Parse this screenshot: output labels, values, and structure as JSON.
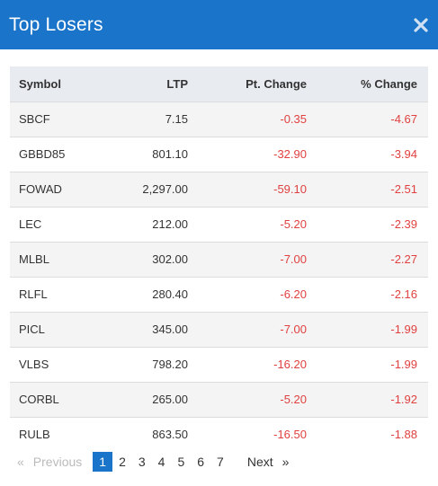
{
  "header": {
    "title": "Top Losers",
    "close_icon": "close-icon"
  },
  "table": {
    "columns": [
      "Symbol",
      "LTP",
      "Pt. Change",
      "% Change"
    ],
    "rows": [
      {
        "symbol": "SBCF",
        "ltp": "7.15",
        "pt_change": "-0.35",
        "pct_change": "-4.67"
      },
      {
        "symbol": "GBBD85",
        "ltp": "801.10",
        "pt_change": "-32.90",
        "pct_change": "-3.94"
      },
      {
        "symbol": "FOWAD",
        "ltp": "2,297.00",
        "pt_change": "-59.10",
        "pct_change": "-2.51"
      },
      {
        "symbol": "LEC",
        "ltp": "212.00",
        "pt_change": "-5.20",
        "pct_change": "-2.39"
      },
      {
        "symbol": "MLBL",
        "ltp": "302.00",
        "pt_change": "-7.00",
        "pct_change": "-2.27"
      },
      {
        "symbol": "RLFL",
        "ltp": "280.40",
        "pt_change": "-6.20",
        "pct_change": "-2.16"
      },
      {
        "symbol": "PICL",
        "ltp": "345.00",
        "pt_change": "-7.00",
        "pct_change": "-1.99"
      },
      {
        "symbol": "VLBS",
        "ltp": "798.20",
        "pt_change": "-16.20",
        "pct_change": "-1.99"
      },
      {
        "symbol": "CORBL",
        "ltp": "265.00",
        "pt_change": "-5.20",
        "pct_change": "-1.92"
      },
      {
        "symbol": "RULB",
        "ltp": "863.50",
        "pt_change": "-16.50",
        "pct_change": "-1.88"
      }
    ]
  },
  "pagination": {
    "prev_arrow": "«",
    "prev_label": "Previous",
    "pages": [
      "1",
      "2",
      "3",
      "4",
      "5",
      "6",
      "7"
    ],
    "current_page": "1",
    "next_label": "Next",
    "next_arrow": "»"
  },
  "colors": {
    "accent": "#1a74c9",
    "negative": "#e04040",
    "row_alt": "#f4f4f4",
    "header_bg": "#e8ebef"
  }
}
